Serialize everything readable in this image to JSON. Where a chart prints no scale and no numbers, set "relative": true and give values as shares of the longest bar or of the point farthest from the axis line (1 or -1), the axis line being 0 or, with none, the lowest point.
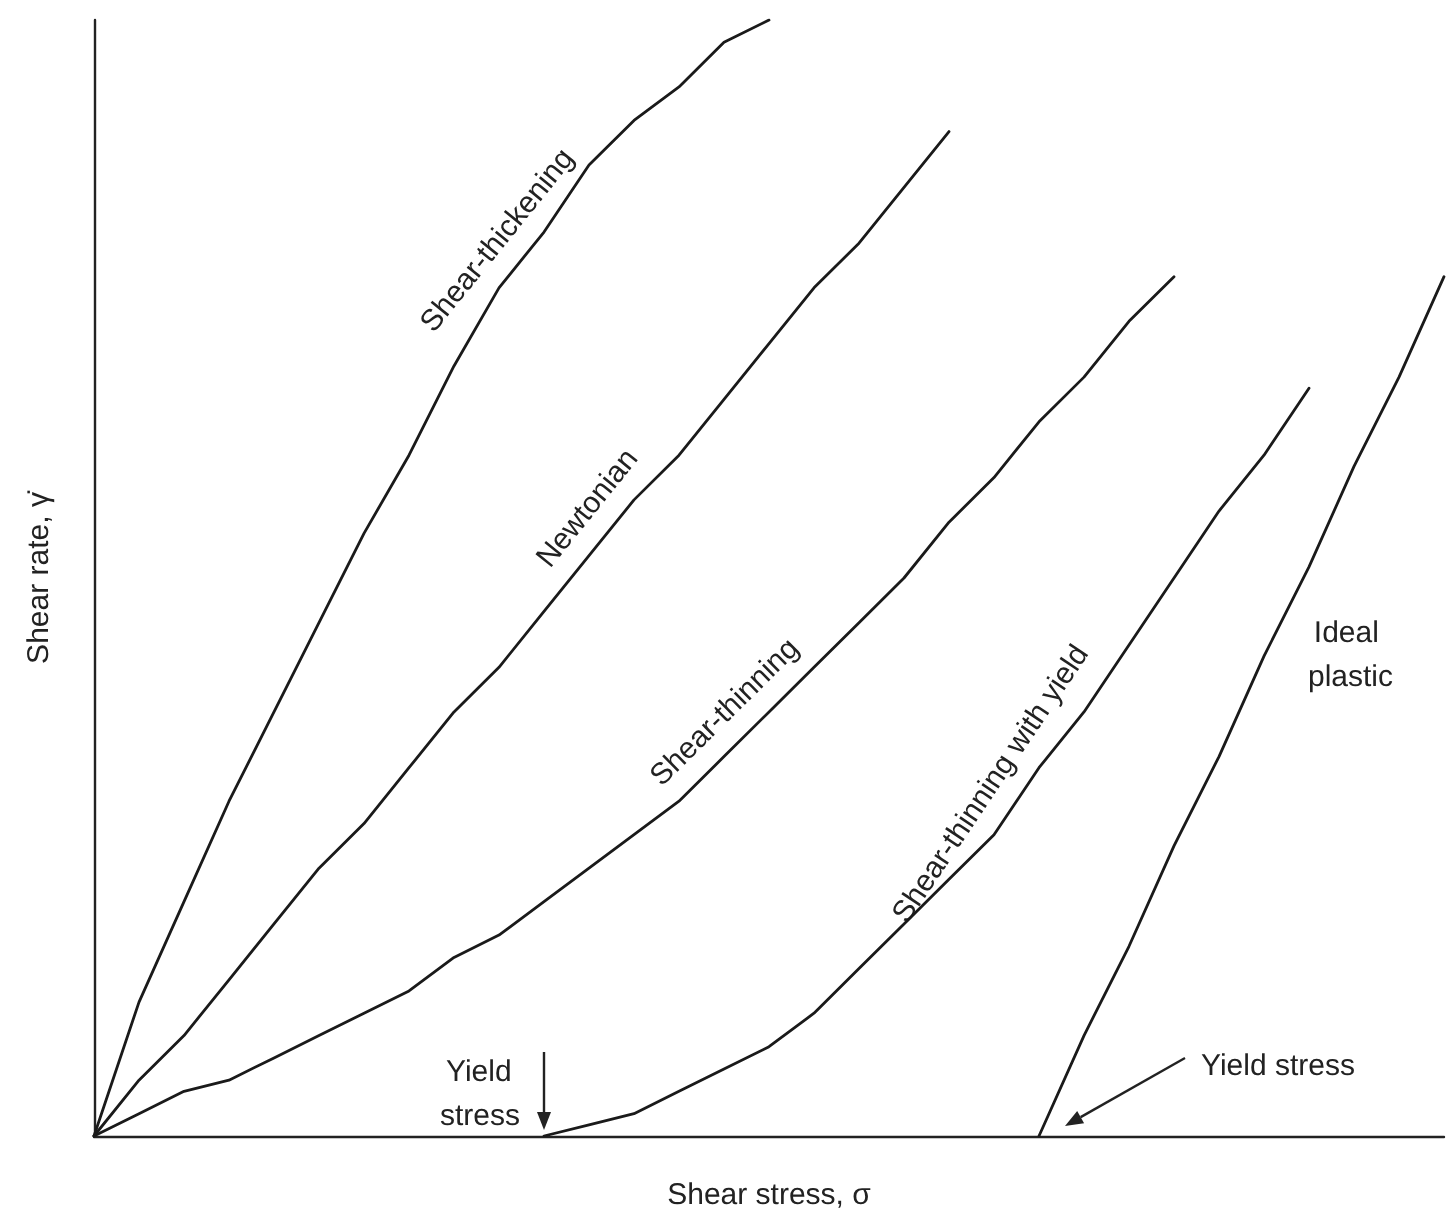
{
  "chart_data": {
    "type": "line",
    "relative": true,
    "xlabel": "Shear stress, σ",
    "ylabel": "Shear rate, γ̇",
    "color": "#1a1a1a",
    "marker": "none",
    "line_style": "solid",
    "categories": [
      null,
      null,
      null,
      null,
      null,
      null,
      null,
      null,
      null,
      null,
      null,
      null,
      null,
      null,
      null,
      null,
      null,
      null,
      null,
      null,
      null,
      null,
      null,
      null,
      null,
      null,
      null,
      null,
      null,
      null,
      null
    ],
    "series": [
      {
        "name": "Shear-thickening",
        "values": [
          0,
          0.12,
          0.21,
          0.3,
          0.38,
          0.46,
          0.54,
          0.61,
          0.69,
          0.76,
          0.81,
          0.87,
          0.91,
          0.94,
          0.98,
          1,
          null,
          null,
          null,
          null,
          null,
          null,
          null,
          null,
          null,
          null,
          null,
          null,
          null,
          null,
          null
        ]
      },
      {
        "name": "Newtonian",
        "values": [
          0,
          0.05,
          0.09,
          0.14,
          0.19,
          0.24,
          0.28,
          0.33,
          0.38,
          0.42,
          0.47,
          0.52,
          0.57,
          0.61,
          0.66,
          0.71,
          0.76,
          0.8,
          0.85,
          0.9,
          null,
          null,
          null,
          null,
          null,
          null,
          null,
          null,
          null,
          null,
          null
        ]
      },
      {
        "name": "Shear-thinning",
        "values": [
          0,
          0.02,
          0.04,
          0.05,
          0.07,
          0.09,
          0.11,
          0.13,
          0.16,
          0.18,
          0.21,
          0.24,
          0.27,
          0.3,
          0.34,
          0.38,
          0.42,
          0.46,
          0.5,
          0.55,
          0.59,
          0.64,
          0.68,
          0.73,
          0.77,
          null,
          null,
          null,
          null,
          null,
          null
        ]
      },
      {
        "name": "Shear-thinning with yield",
        "values": [
          null,
          null,
          null,
          null,
          null,
          null,
          null,
          null,
          null,
          null,
          0,
          0.01,
          0.02,
          0.04,
          0.06,
          0.08,
          0.11,
          0.15,
          0.19,
          0.23,
          0.27,
          0.33,
          0.38,
          0.44,
          0.5,
          0.56,
          0.61,
          0.67,
          null,
          null,
          null
        ]
      },
      {
        "name": "Ideal plastic",
        "values": [
          null,
          null,
          null,
          null,
          null,
          null,
          null,
          null,
          null,
          null,
          null,
          null,
          null,
          null,
          null,
          null,
          null,
          null,
          null,
          null,
          null,
          0,
          0.09,
          0.17,
          0.26,
          0.34,
          0.43,
          0.51,
          0.6,
          0.68,
          0.77
        ]
      }
    ],
    "annotations": [
      "Yield stress",
      "Yield stress"
    ]
  }
}
